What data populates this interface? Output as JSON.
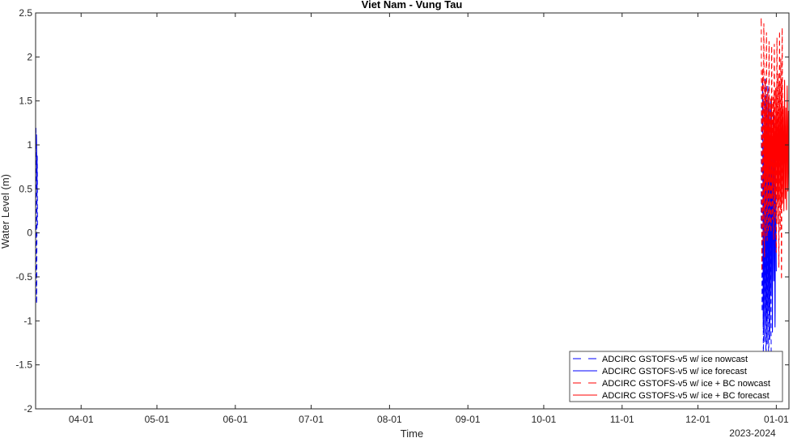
{
  "chart_data": {
    "type": "line",
    "title": "Viet Nam - Vung Tau",
    "xlabel": "Time",
    "ylabel": "Water Level (m)",
    "x_secondary_label": "2023-2024",
    "x_range": [
      "2023-03-14",
      "2024-01-06"
    ],
    "ylim": [
      -2,
      2.5
    ],
    "yticks": [
      2.5,
      2,
      1.5,
      1,
      0.5,
      0,
      -0.5,
      -1,
      -1.5,
      -2
    ],
    "ytick_labels": [
      "2.5",
      "2",
      "1.5",
      "1",
      "0.5",
      "0",
      "-0.5",
      "-1",
      "-1.5",
      "-2"
    ],
    "xticks": [
      "2023-04-01",
      "2023-05-01",
      "2023-06-01",
      "2023-07-01",
      "2023-08-01",
      "2023-09-01",
      "2023-10-01",
      "2023-11-01",
      "2023-12-01",
      "2024-01-01"
    ],
    "xtick_labels": [
      "04-01",
      "05-01",
      "06-01",
      "07-01",
      "08-01",
      "09-01",
      "10-01",
      "11-01",
      "12-01",
      "01-01"
    ],
    "grid": false,
    "legend_position": "bottom-right",
    "series": [
      {
        "name": "ADCIRC GSTOFS-v5 w/ ice nowcast",
        "color": "#0000ff",
        "dash": "dashed",
        "segments": [
          {
            "start": "2023-03-14T00:00",
            "end": "2023-03-14T18:00",
            "mean": 0.0,
            "amp": 1.15
          },
          {
            "start": "2023-12-26T00:00",
            "end": "2023-12-30T00:00",
            "mean": 0.05,
            "amp": 1.35
          }
        ]
      },
      {
        "name": "ADCIRC GSTOFS-v5 w/ ice forecast",
        "color": "#0000ff",
        "dash": "solid",
        "segments": [
          {
            "start": "2023-03-14T06:00",
            "end": "2023-03-14T14:00",
            "mean": 0.75,
            "amp": 0.3
          },
          {
            "start": "2023-12-26T12:00",
            "end": "2024-01-01T00:00",
            "mean": 0.15,
            "amp": 1.3
          }
        ]
      },
      {
        "name": "ADCIRC GSTOFS-v5 w/ ice + BC nowcast",
        "color": "#ff0000",
        "dash": "dashed",
        "segments": [
          {
            "start": "2023-12-26T00:00",
            "end": "2024-01-03T12:00",
            "mean": 0.95,
            "amp": 1.25
          }
        ]
      },
      {
        "name": "ADCIRC GSTOFS-v5 w/ ice + BC forecast",
        "color": "#ff0000",
        "dash": "solid",
        "segments": [
          {
            "start": "2023-12-27T00:00",
            "end": "2024-01-06T00:00",
            "mean": 0.95,
            "amp": 0.65
          }
        ]
      }
    ]
  }
}
